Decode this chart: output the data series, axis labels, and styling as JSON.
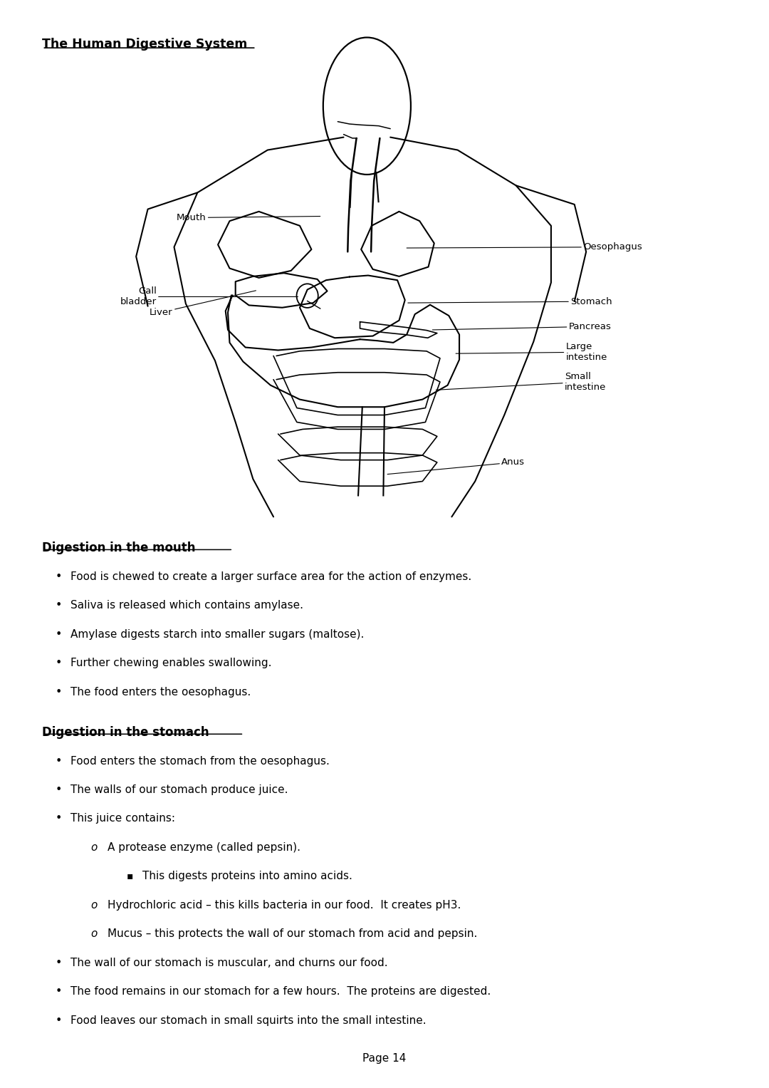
{
  "title": "The Human Digestive System",
  "page_number": "Page 14",
  "background_color": "#ffffff",
  "text_color": "#000000",
  "section1_heading": "Digestion in the mouth",
  "section1_bullets": [
    "Food is chewed to create a larger surface area for the action of enzymes.",
    "Saliva is released which contains amylase.",
    "Amylase digests starch into smaller sugars (maltose).",
    "Further chewing enables swallowing.",
    "The food enters the oesophagus."
  ],
  "section2_heading": "Digestion in the stomach",
  "section2_bullets": [
    "Food enters the stomach from the oesophagus.",
    "The walls of our stomach produce juice.",
    "This juice contains:"
  ],
  "section2_sub1": "A protease enzyme (called pepsin).",
  "section2_sub1a": "This digests proteins into amino acids.",
  "section2_sub2": "Hydrochloric acid – this kills bacteria in our food.  It creates pH3.",
  "section2_sub3": "Mucus – this protects the wall of our stomach from acid and pepsin.",
  "section2_bullets2": [
    "The wall of our stomach is muscular, and churns our food.",
    "The food remains in our stomach for a few hours.  The proteins are digested.",
    "Food leaves our stomach in small squirts into the small intestine."
  ]
}
